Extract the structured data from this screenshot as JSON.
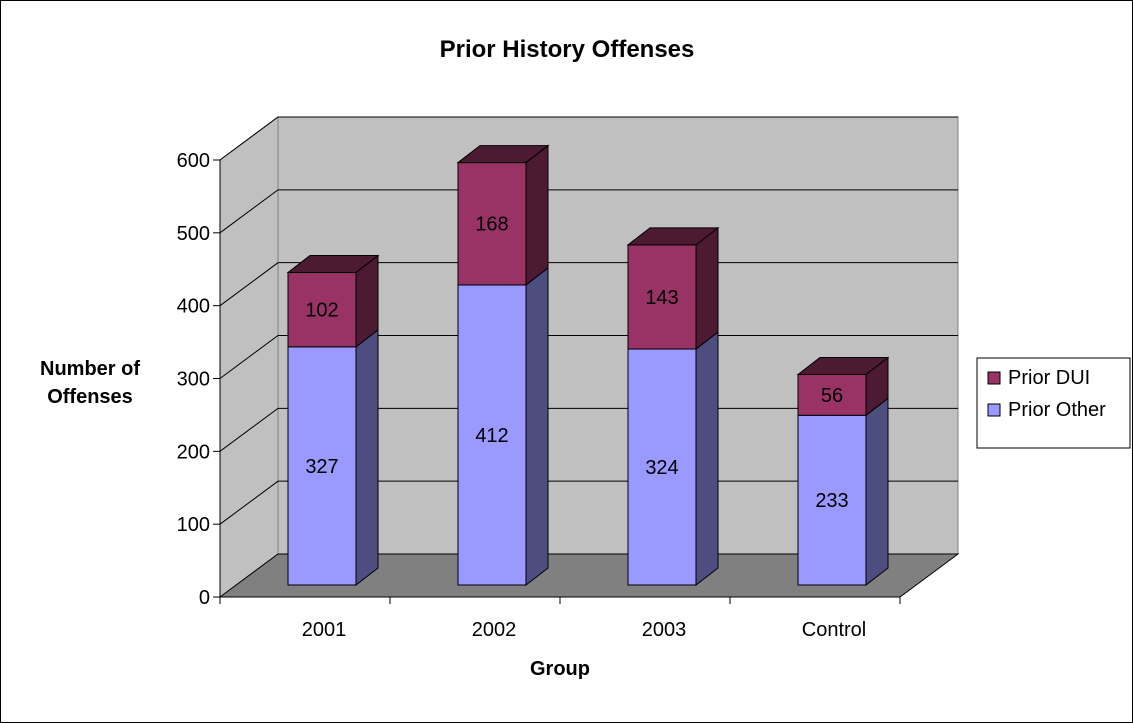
{
  "chart_data": {
    "type": "bar",
    "stacked": true,
    "three_d": true,
    "title": "Prior History Offenses",
    "xlabel": "Group",
    "ylabel": [
      "Number of",
      "Offenses"
    ],
    "categories": [
      "2001",
      "2002",
      "2003",
      "Control"
    ],
    "series": [
      {
        "name": "Prior Other",
        "values": [
          327,
          412,
          324,
          233
        ],
        "color": "#9999ff",
        "side_color": "#4d4d80"
      },
      {
        "name": "Prior DUI",
        "values": [
          102,
          168,
          143,
          56
        ],
        "color": "#993366",
        "side_color": "#4d1a33"
      }
    ],
    "legend_order": [
      "Prior DUI",
      "Prior Other"
    ],
    "legend_position": "right",
    "yticks": [
      0,
      100,
      200,
      300,
      400,
      500,
      600
    ],
    "ylim": [
      0,
      600
    ],
    "grid": true,
    "colors": {
      "back_wall": "#c0c0c0",
      "floor": "#808080",
      "grid": "#000000"
    }
  }
}
